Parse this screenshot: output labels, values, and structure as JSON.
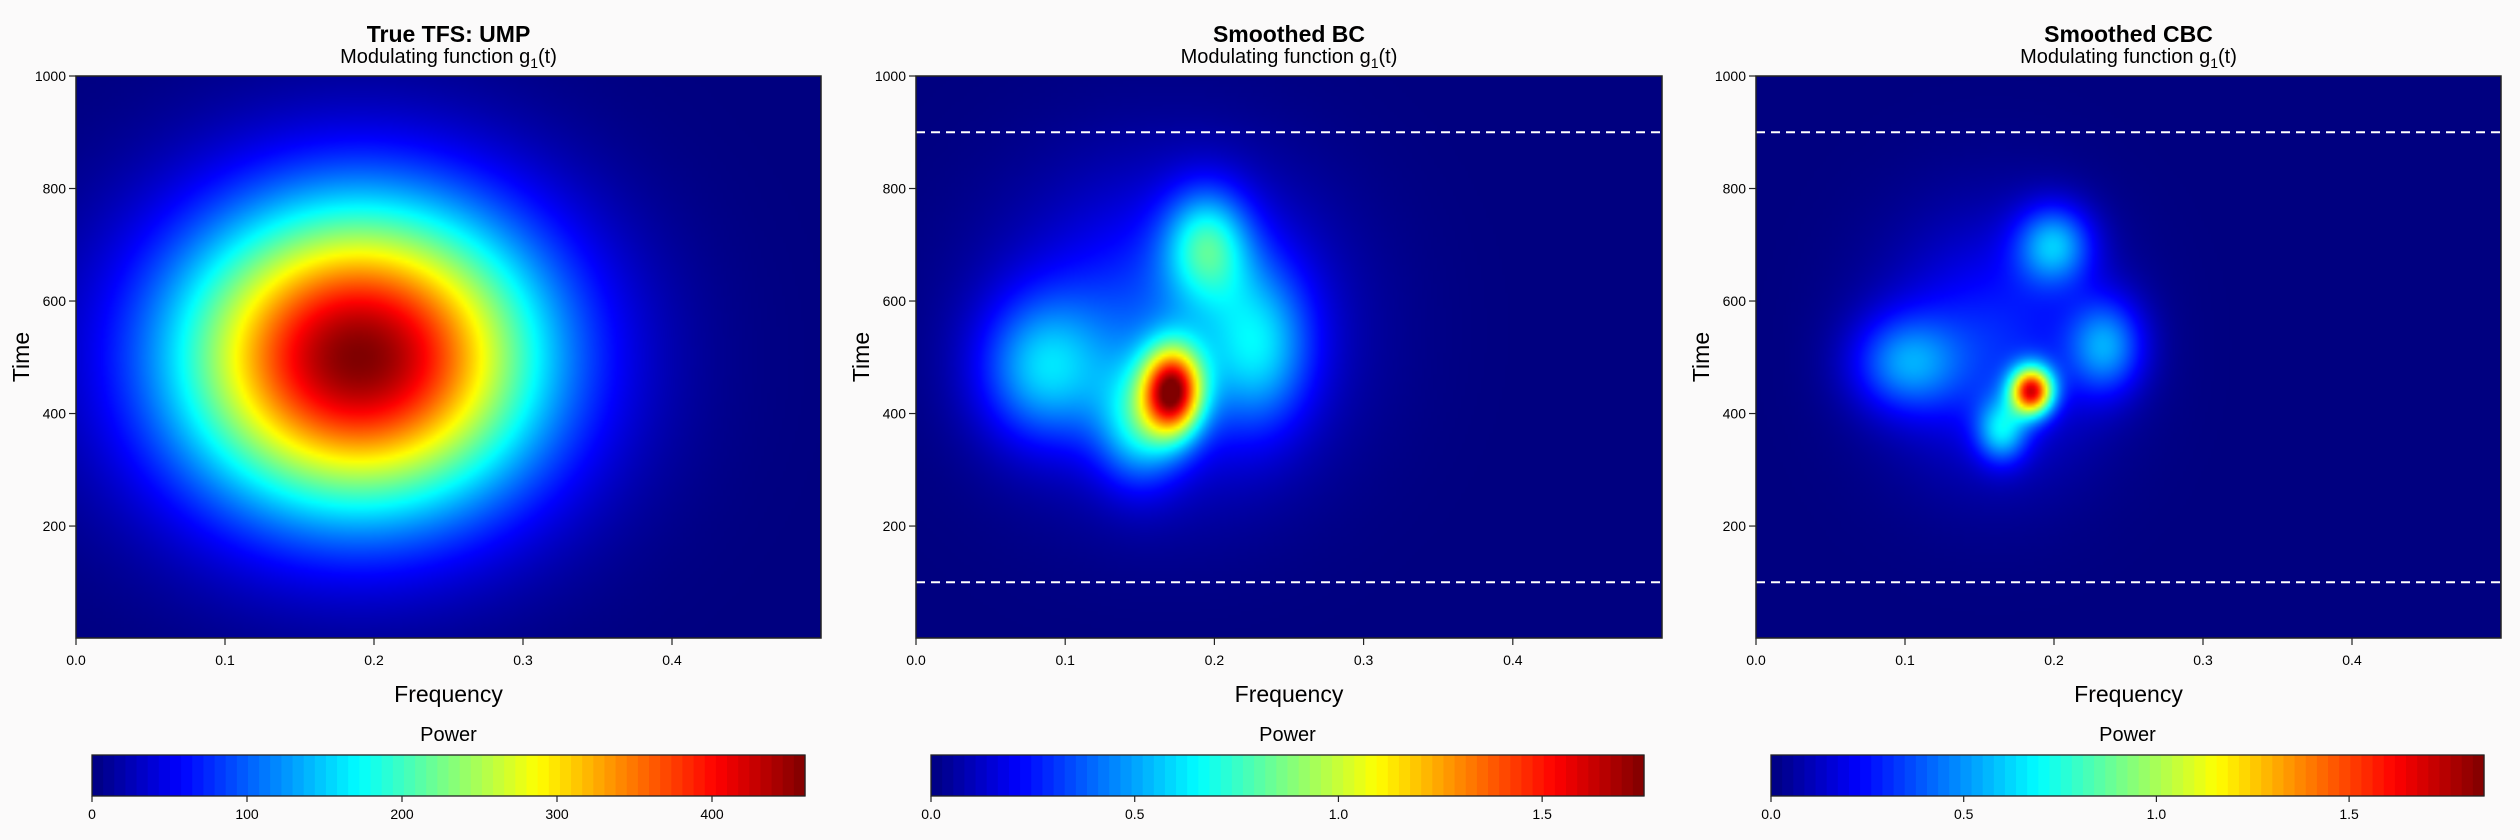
{
  "chart_data": [
    {
      "type": "heatmap",
      "title": "True TFS: UMP",
      "subtitle": "Modulating function g",
      "subtitle_sub": "1",
      "subtitle_tail": "(t)",
      "xlabel": "Frequency",
      "ylabel": "Time",
      "xlim": [
        0,
        0.5
      ],
      "ylim": [
        1,
        1000
      ],
      "xticks": [
        "0.0",
        "0.1",
        "0.2",
        "0.3",
        "0.4"
      ],
      "yticks": [
        "200",
        "400",
        "600",
        "800",
        "1000"
      ],
      "colorbar_label": "Power",
      "colorbar_range": [
        0,
        460
      ],
      "colorbar_ticks": [
        "0",
        "100",
        "200",
        "300",
        "400"
      ],
      "colorbar_tick_values": [
        0,
        100,
        200,
        300,
        400
      ],
      "dashed_lines_time": [],
      "peak": {
        "frequency": 0.19,
        "time": 500,
        "power": 460
      },
      "components": [
        {
          "frequency": 0.19,
          "time": 500,
          "freq_sd": 0.085,
          "time_sd": 190,
          "power": 460
        }
      ]
    },
    {
      "type": "heatmap",
      "title": "Smoothed BC",
      "subtitle": "Modulating function g",
      "subtitle_sub": "1",
      "subtitle_tail": "(t)",
      "xlabel": "Frequency",
      "ylabel": "Time",
      "xlim": [
        0,
        0.5
      ],
      "ylim": [
        1,
        1000
      ],
      "xticks": [
        "0.0",
        "0.1",
        "0.2",
        "0.3",
        "0.4"
      ],
      "yticks": [
        "200",
        "400",
        "600",
        "800",
        "1000"
      ],
      "colorbar_label": "Power",
      "colorbar_range": [
        0,
        1.75
      ],
      "colorbar_ticks": [
        "0.0",
        "0.5",
        "1.0",
        "1.5"
      ],
      "colorbar_tick_values": [
        0,
        0.5,
        1.0,
        1.5
      ],
      "dashed_lines_time": [
        100,
        900
      ],
      "peak": {
        "frequency": 0.17,
        "time": 440,
        "power": 1.75
      },
      "components": [
        {
          "frequency": 0.172,
          "time": 440,
          "freq_sd": 0.014,
          "time_sd": 55,
          "power": 1.35
        },
        {
          "frequency": 0.15,
          "time": 380,
          "freq_sd": 0.02,
          "time_sd": 75,
          "power": 0.45
        },
        {
          "frequency": 0.195,
          "time": 700,
          "freq_sd": 0.02,
          "time_sd": 70,
          "power": 0.55
        },
        {
          "frequency": 0.085,
          "time": 480,
          "freq_sd": 0.03,
          "time_sd": 90,
          "power": 0.45
        },
        {
          "frequency": 0.23,
          "time": 520,
          "freq_sd": 0.025,
          "time_sd": 100,
          "power": 0.4
        },
        {
          "frequency": 0.17,
          "time": 550,
          "freq_sd": 0.07,
          "time_sd": 180,
          "power": 0.35
        }
      ]
    },
    {
      "type": "heatmap",
      "title": "Smoothed CBC",
      "subtitle": "Modulating function g",
      "subtitle_sub": "1",
      "subtitle_tail": "(t)",
      "xlabel": "Frequency",
      "ylabel": "Time",
      "xlim": [
        0,
        0.5
      ],
      "ylim": [
        1,
        1000
      ],
      "xticks": [
        "0.0",
        "0.1",
        "0.2",
        "0.3",
        "0.4"
      ],
      "yticks": [
        "200",
        "400",
        "600",
        "800",
        "1000"
      ],
      "colorbar_label": "Power",
      "colorbar_range": [
        0,
        1.85
      ],
      "colorbar_ticks": [
        "0.0",
        "0.5",
        "1.0",
        "1.5"
      ],
      "colorbar_tick_values": [
        0,
        0.5,
        1.0,
        1.5
      ],
      "dashed_lines_time": [
        100,
        900
      ],
      "peak": {
        "frequency": 0.185,
        "time": 440,
        "power": 1.85
      },
      "components": [
        {
          "frequency": 0.185,
          "time": 440,
          "freq_sd": 0.01,
          "time_sd": 30,
          "power": 1.45
        },
        {
          "frequency": 0.165,
          "time": 370,
          "freq_sd": 0.012,
          "time_sd": 40,
          "power": 0.5
        },
        {
          "frequency": 0.2,
          "time": 700,
          "freq_sd": 0.018,
          "time_sd": 50,
          "power": 0.5
        },
        {
          "frequency": 0.1,
          "time": 490,
          "freq_sd": 0.025,
          "time_sd": 60,
          "power": 0.4
        },
        {
          "frequency": 0.235,
          "time": 520,
          "freq_sd": 0.018,
          "time_sd": 60,
          "power": 0.45
        },
        {
          "frequency": 0.16,
          "time": 520,
          "freq_sd": 0.05,
          "time_sd": 150,
          "power": 0.3
        }
      ]
    }
  ]
}
